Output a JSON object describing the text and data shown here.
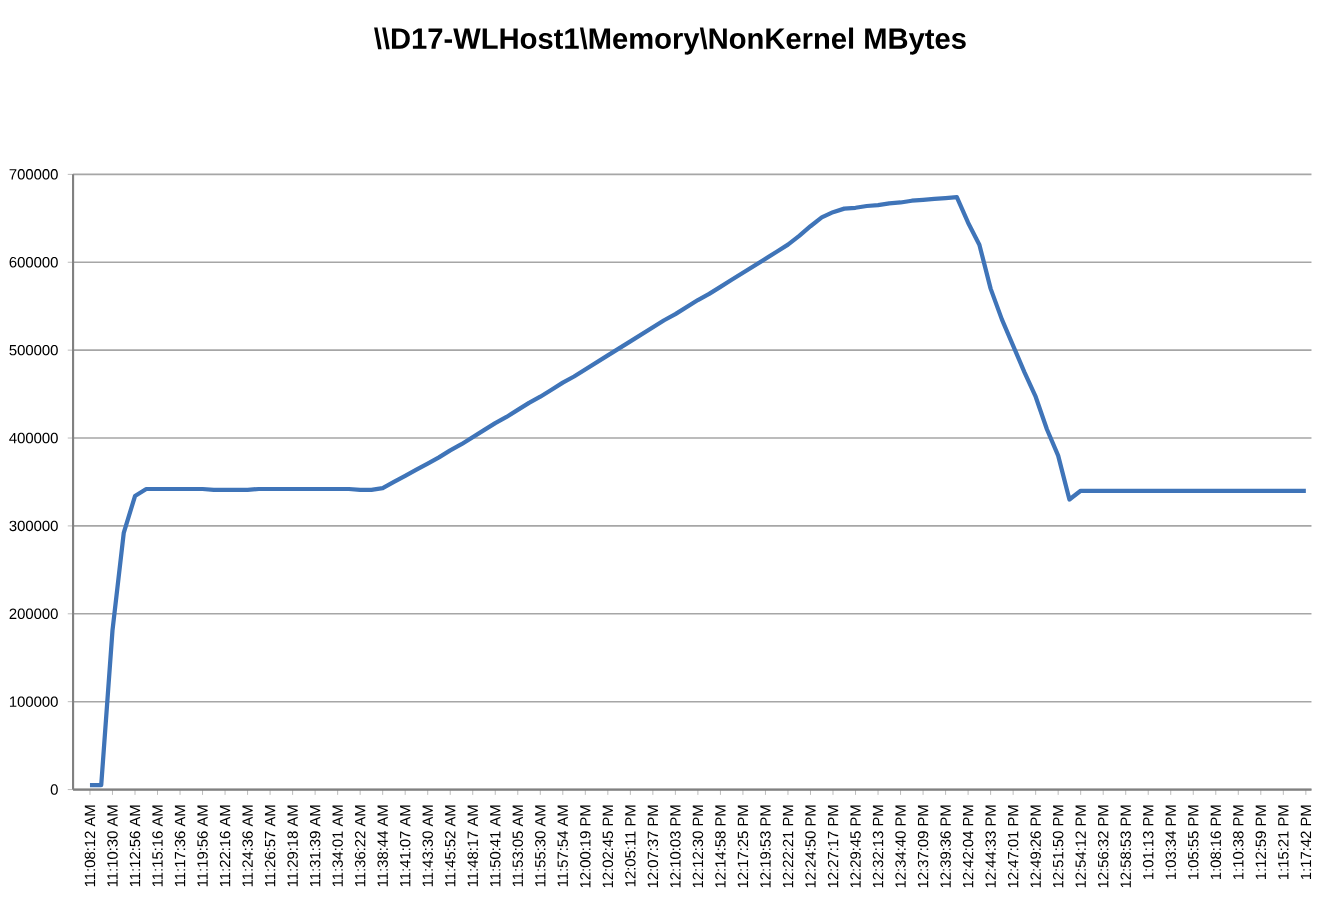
{
  "chart_data": {
    "type": "line",
    "title": "\\\\D17-WLHost1\\Memory\\NonKernel MBytes",
    "categories": [
      "11:08:12 AM",
      null,
      "11:10:30 AM",
      null,
      "11:12:56 AM",
      null,
      "11:15:16 AM",
      null,
      "11:17:36 AM",
      null,
      "11:19:56 AM",
      null,
      "11:22:16 AM",
      null,
      "11:24:36 AM",
      null,
      "11:26:57 AM",
      null,
      "11:29:18 AM",
      null,
      "11:31:39 AM",
      null,
      "11:34:01 AM",
      null,
      "11:36:22 AM",
      null,
      "11:38:44 AM",
      null,
      "11:41:07 AM",
      null,
      "11:43:30 AM",
      null,
      "11:45:52 AM",
      null,
      "11:48:17 AM",
      null,
      "11:50:41 AM",
      null,
      "11:53:05 AM",
      null,
      "11:55:30 AM",
      null,
      "11:57:54 AM",
      null,
      "12:00:19 PM",
      null,
      "12:02:45 PM",
      null,
      "12:05:11 PM",
      null,
      "12:07:37 PM",
      null,
      "12:10:03 PM",
      null,
      "12:12:30 PM",
      null,
      "12:14:58 PM",
      null,
      "12:17:25 PM",
      null,
      "12:19:53 PM",
      null,
      "12:22:21 PM",
      null,
      "12:24:50 PM",
      null,
      "12:27:17 PM",
      null,
      "12:29:45 PM",
      null,
      "12:32:13 PM",
      null,
      "12:34:40 PM",
      null,
      "12:37:09 PM",
      null,
      "12:39:36 PM",
      null,
      "12:42:04 PM",
      null,
      "12:44:33 PM",
      null,
      "12:47:01 PM",
      null,
      "12:49:26 PM",
      null,
      "12:51:50 PM",
      null,
      "12:54:12 PM",
      null,
      "12:56:32 PM",
      null,
      "12:58:53 PM",
      null,
      "1:01:13 PM",
      null,
      "1:03:34 PM",
      null,
      "1:05:55 PM",
      null,
      "1:08:16 PM",
      null,
      "1:10:38 PM",
      null,
      "1:12:59 PM",
      null,
      "1:15:21 PM",
      null,
      "1:17:42 PM"
    ],
    "values": [
      5000,
      5000,
      181000,
      292000,
      334000,
      342000,
      342000,
      342000,
      342000,
      342000,
      342000,
      341000,
      341000,
      341000,
      341000,
      342000,
      342000,
      342000,
      342000,
      342000,
      342000,
      342000,
      342000,
      342000,
      341000,
      341000,
      343000,
      350000,
      357000,
      364000,
      371000,
      378000,
      386000,
      393000,
      401000,
      409000,
      417000,
      424000,
      432000,
      440000,
      447000,
      455000,
      463000,
      470000,
      478000,
      486000,
      494000,
      502000,
      510000,
      518000,
      526000,
      534000,
      541000,
      549000,
      557000,
      564000,
      572000,
      580000,
      588000,
      596000,
      604000,
      612000,
      620000,
      630000,
      641000,
      651000,
      657000,
      661000,
      662000,
      664000,
      665000,
      667000,
      668000,
      670000,
      671000,
      672000,
      673000,
      674000,
      645000,
      620000,
      570000,
      535000,
      505000,
      475000,
      447000,
      410000,
      380000,
      330000,
      340000,
      340000,
      340000,
      340000,
      340000,
      340000,
      340000,
      340000,
      340000,
      340000,
      340000,
      340000,
      340000,
      340000,
      340000,
      340000,
      340000,
      340000,
      340000,
      340000,
      340000
    ],
    "color": "#3f74b8",
    "ylim": [
      0,
      700000
    ],
    "yticks": [
      0,
      100000,
      200000,
      300000,
      400000,
      500000,
      600000,
      700000
    ],
    "grid": "y",
    "marker": "none",
    "line_style": "solid"
  }
}
